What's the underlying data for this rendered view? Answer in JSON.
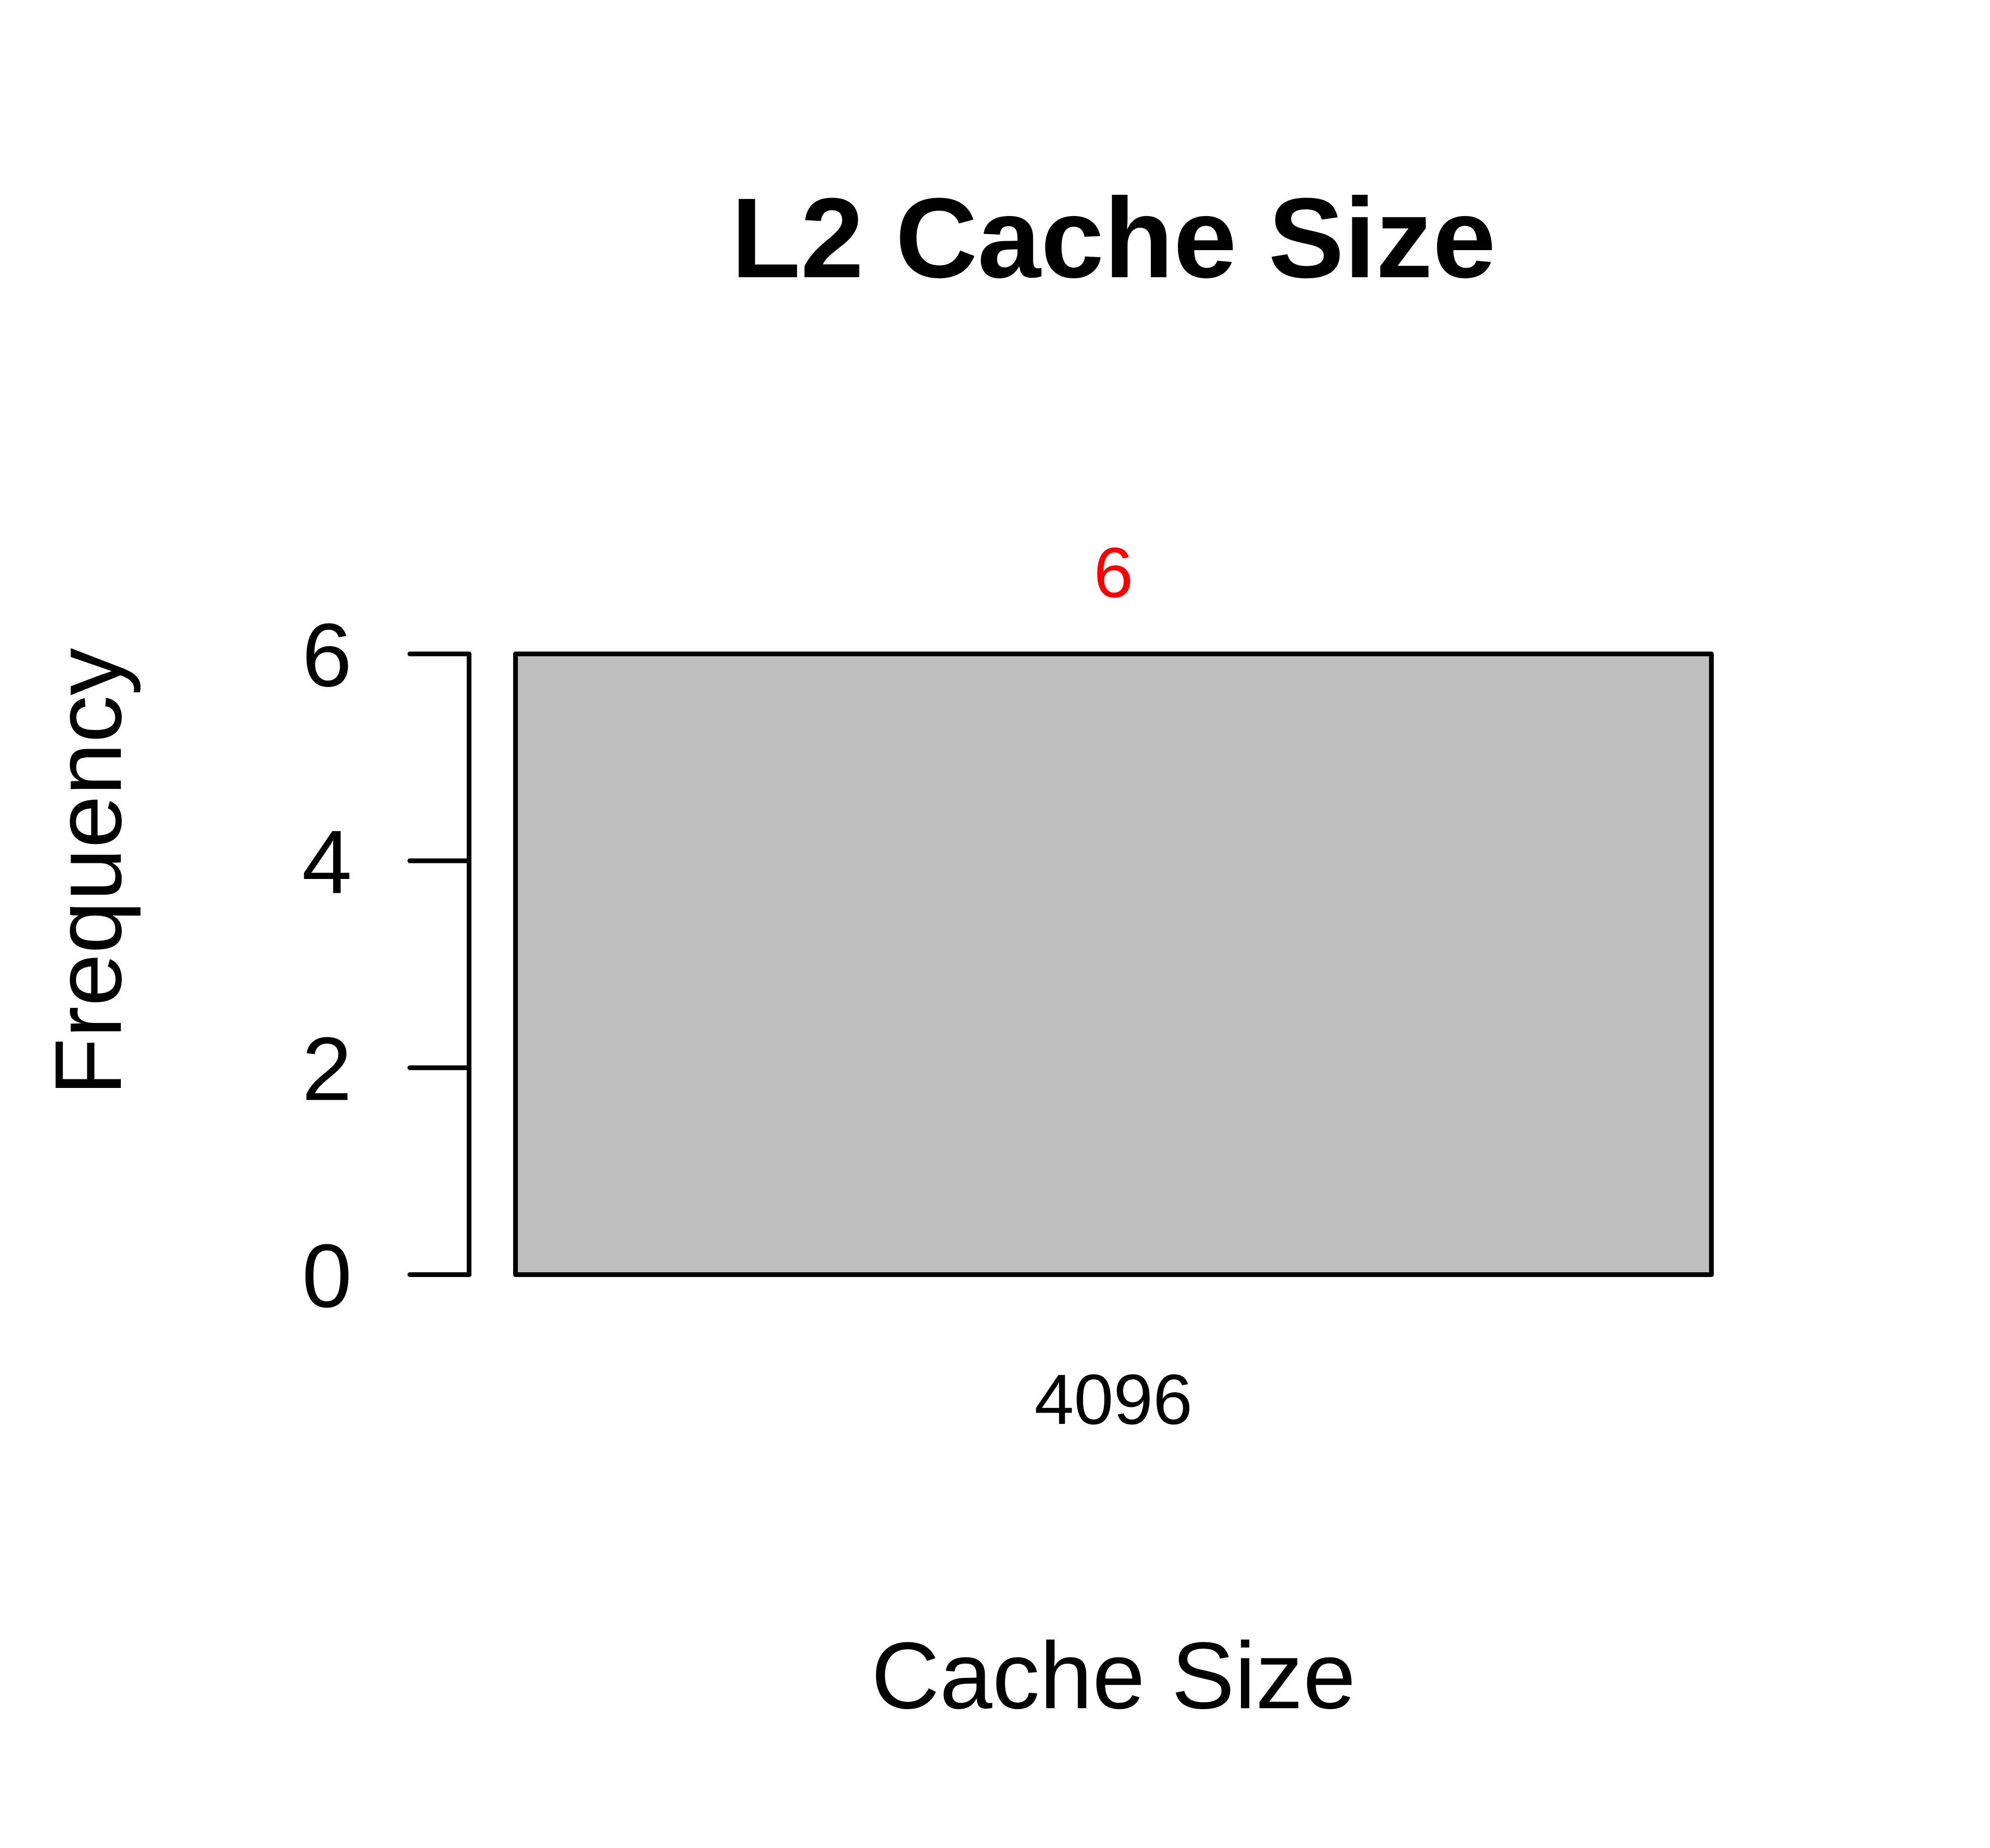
{
  "chart_data": {
    "type": "bar",
    "title": "L2 Cache Size",
    "xlabel": "Cache Size",
    "ylabel": "Frequency",
    "categories": [
      "4096"
    ],
    "values": [
      6
    ],
    "data_labels": [
      "6"
    ],
    "yticks": [
      0,
      2,
      4,
      6
    ],
    "ylim": [
      0,
      6
    ],
    "grid": false,
    "legend": "none",
    "bar_color": "#bebebe",
    "bar_border_color": "#000000",
    "data_label_color": "#ff0000"
  }
}
